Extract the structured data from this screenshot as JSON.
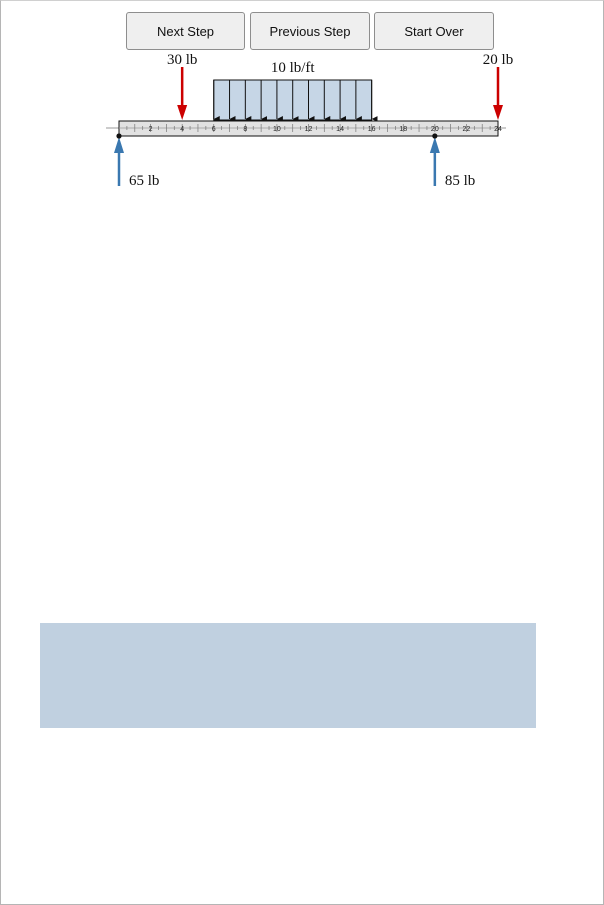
{
  "controls": {
    "next_label": "Next Step",
    "previous_label": "Previous Step",
    "start_over_label": "Start Over"
  },
  "diagram": {
    "beam_length_ft": 24,
    "tick_labels": [
      2,
      4,
      6,
      8,
      10,
      12,
      14,
      16,
      18,
      20,
      22,
      24
    ],
    "distributed_load": {
      "label": "10 lb/ft",
      "start_ft": 6,
      "end_ft": 16
    },
    "point_loads": [
      {
        "label": "30 lb",
        "position_ft": 4
      },
      {
        "label": "20 lb",
        "position_ft": 24
      }
    ],
    "reactions": [
      {
        "label": "65 lb",
        "position_ft": 0
      },
      {
        "label": "85 lb",
        "position_ft": 20
      }
    ],
    "colors": {
      "load": "#cc0000",
      "reaction": "#3a78b0",
      "udl_fill": "#c6d6e6",
      "beam_fill": "#e2e2e2",
      "panel": "#c0d0e0"
    }
  }
}
